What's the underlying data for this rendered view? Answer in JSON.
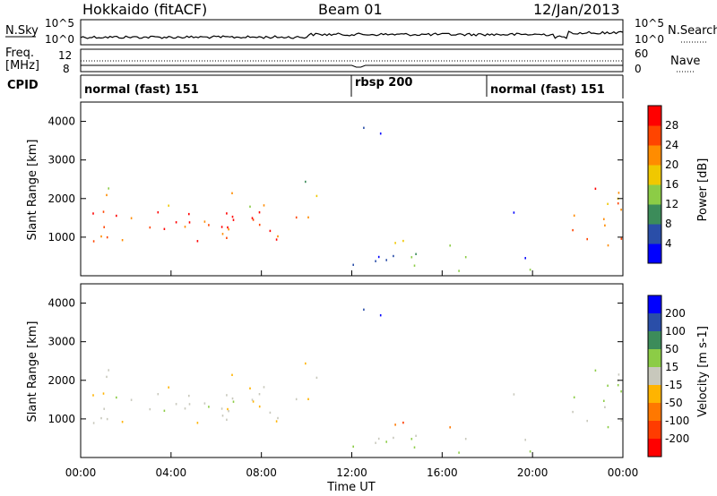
{
  "header": {
    "title": "Hokkaido (fitACF)",
    "beam": "Beam 01",
    "date": "12/Jan/2013"
  },
  "noise_panel": {
    "left_label": "N.Sky",
    "right_label": "N.Search",
    "left_ticks": [
      "10^5",
      "10^0"
    ],
    "right_ticks": [
      "10^5",
      "10^0"
    ]
  },
  "freq_panel": {
    "left_label_top": "Freq.",
    "left_label_bottom": "[MHz]",
    "right_label": "Nave",
    "left_ticks": [
      "12",
      "8"
    ],
    "right_ticks": [
      "60",
      "0"
    ]
  },
  "cpid": {
    "label": "CPID",
    "segments": [
      {
        "start": 0,
        "end": 12,
        "label": "normal (fast) 151"
      },
      {
        "start": 12,
        "end": 18,
        "label": "rbsp 200"
      },
      {
        "start": 18,
        "end": 24,
        "label": "normal (fast) 151"
      }
    ]
  },
  "colors": {
    "power": [
      "#0000ff",
      "#2a4ea8",
      "#3c8c5a",
      "#8ccc46",
      "#f0c800",
      "#ff8c00",
      "#ff4400",
      "#ff0000"
    ],
    "velocity": [
      "#0000ff",
      "#2a4ea8",
      "#3c8c5a",
      "#8ccc46",
      "#c8c8bc",
      "#ffb400",
      "#ff7800",
      "#ff3c00",
      "#ff0000"
    ]
  },
  "chart_data": [
    {
      "type": "heatmap",
      "name": "power",
      "ylabel": "Slant Range [km]",
      "yticks": [
        "1000",
        "2000",
        "3000",
        "4000"
      ],
      "ylim": [
        0,
        4500
      ],
      "xlim": [
        0,
        24
      ],
      "colorbar": {
        "label": "Power [dB]",
        "ticks": [
          "4",
          "8",
          "12",
          "16",
          "20",
          "24",
          "28"
        ]
      }
    },
    {
      "type": "heatmap",
      "name": "velocity",
      "ylabel": "Slant Range [km]",
      "yticks": [
        "1000",
        "2000",
        "3000",
        "4000"
      ],
      "ylim": [
        0,
        4500
      ],
      "xlim": [
        0,
        24
      ],
      "xlabel": "Time UT",
      "xticks": [
        "00:00",
        "04:00",
        "08:00",
        "12:00",
        "16:00",
        "20:00",
        "00:00"
      ],
      "colorbar": {
        "label": "Velocity [m s-1]",
        "ticks": [
          "200",
          "100",
          "50",
          "15",
          "-15",
          "-50",
          "-100",
          "-200"
        ]
      }
    }
  ]
}
